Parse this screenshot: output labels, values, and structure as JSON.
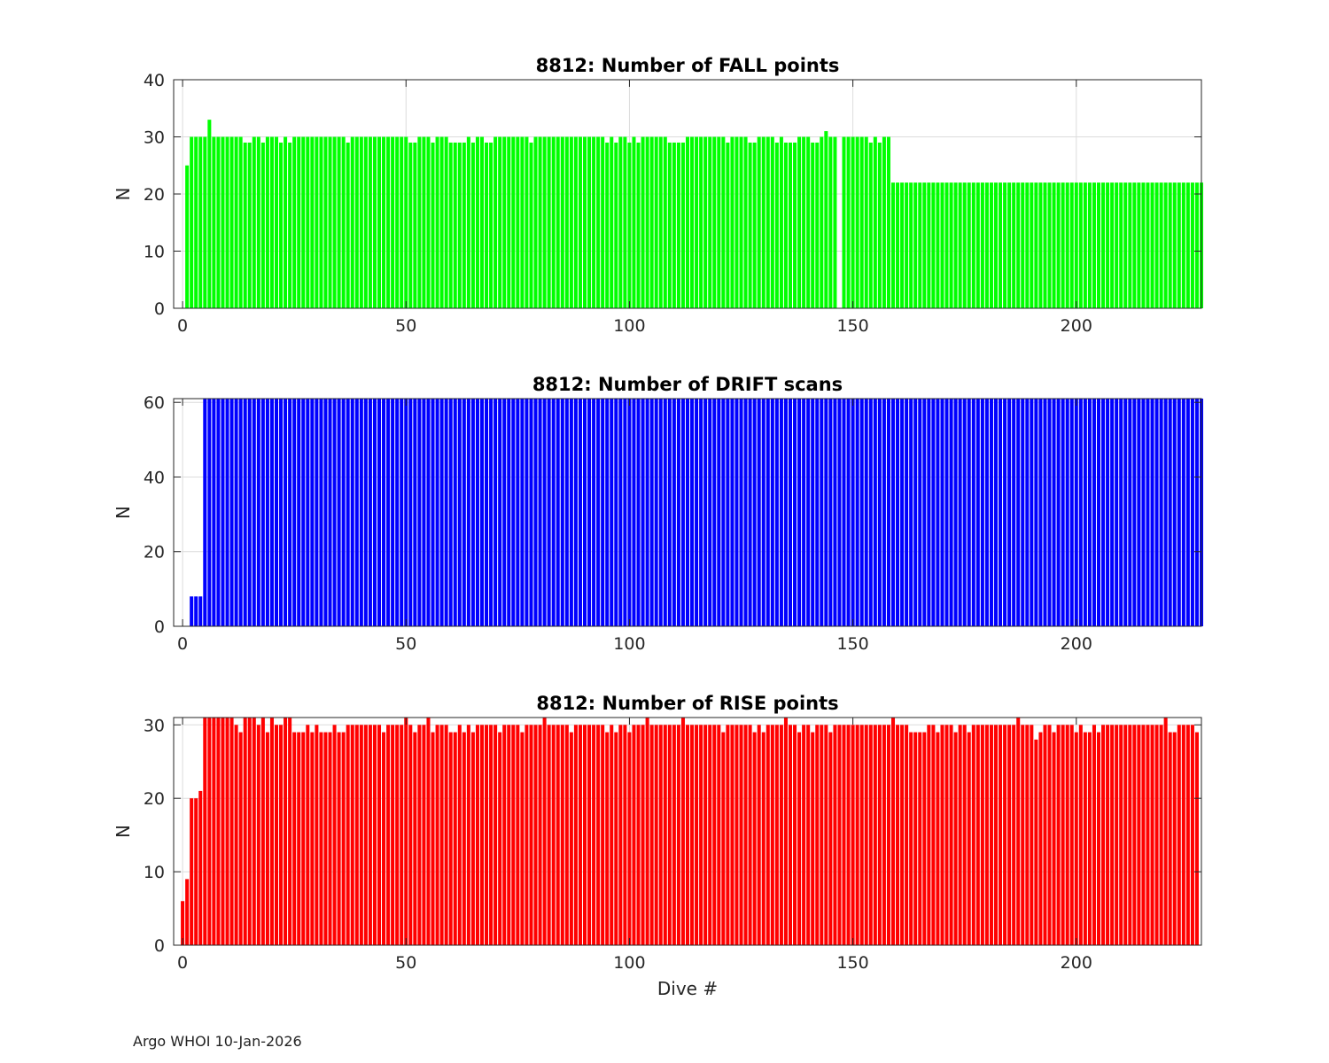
{
  "chart_data": [
    {
      "type": "bar",
      "title": "8812: Number of FALL points",
      "ylabel": "N",
      "xlabel": "",
      "xlim": [
        -2,
        228
      ],
      "ylim": [
        0,
        40
      ],
      "xticks": [
        0,
        50,
        100,
        150,
        200
      ],
      "yticks": [
        0,
        10,
        20,
        30,
        40
      ],
      "grid": true,
      "color": "#00ff00",
      "series": [
        {
          "start_x": 0,
          "values": [
            null,
            25,
            30,
            30,
            30,
            30,
            33,
            30,
            30,
            30,
            30,
            30,
            30,
            30,
            29,
            29,
            30,
            30,
            29,
            30,
            30,
            30,
            29,
            30,
            29,
            30,
            30,
            30,
            30,
            30,
            30,
            30,
            30,
            30,
            30,
            30,
            30,
            29,
            30,
            30,
            30,
            30,
            30,
            30,
            30,
            30,
            30,
            30,
            30,
            30,
            30,
            29,
            29,
            30,
            30,
            30,
            29,
            30,
            30,
            30,
            29,
            29,
            29,
            29,
            30,
            29,
            30,
            30,
            29,
            29,
            30,
            30,
            30,
            30,
            30,
            30,
            30,
            30,
            29,
            30,
            30,
            30,
            30,
            30,
            30,
            30,
            30,
            30,
            30,
            30,
            30,
            30,
            30,
            30,
            30,
            29,
            30,
            29,
            30,
            30,
            29,
            30,
            29,
            30,
            30,
            30,
            30,
            30,
            30,
            29,
            29,
            29,
            29,
            30,
            30,
            30,
            30,
            30,
            30,
            30,
            30,
            30,
            29,
            30,
            30,
            30,
            30,
            29,
            29,
            30,
            30,
            30,
            30,
            29,
            30,
            29,
            29,
            29,
            30,
            30,
            30,
            29,
            29,
            30,
            31,
            30,
            30,
            null,
            30,
            30,
            30,
            30,
            30,
            30,
            29,
            30,
            29,
            30,
            30,
            22,
            22,
            22,
            22,
            22,
            22,
            22,
            22,
            22,
            22,
            22,
            22,
            22,
            22,
            22,
            22,
            22,
            22,
            22,
            22,
            22,
            22,
            22,
            22,
            22,
            22,
            22,
            22,
            22,
            22,
            22,
            22,
            22,
            22,
            22,
            22,
            22,
            22,
            22,
            22,
            22,
            22,
            22,
            22,
            22,
            22,
            22,
            22,
            22,
            22,
            22,
            22,
            22,
            22,
            22,
            22,
            22,
            22,
            22,
            22,
            22,
            22,
            22,
            22,
            22,
            22,
            22,
            22,
            22,
            22
          ]
        }
      ]
    },
    {
      "type": "bar",
      "title": "8812: Number of DRIFT scans",
      "ylabel": "N",
      "xlabel": "",
      "xlim": [
        -2,
        228
      ],
      "ylim": [
        0,
        61
      ],
      "xticks": [
        0,
        50,
        100,
        150,
        200
      ],
      "yticks": [
        0,
        20,
        40,
        60
      ],
      "grid": true,
      "color": "#0000ff",
      "series": [
        {
          "start_x": 0,
          "values": [
            null,
            null,
            8,
            8,
            8,
            61,
            61,
            61,
            61,
            61,
            61,
            61,
            61,
            61,
            61,
            61,
            61,
            61,
            61,
            61,
            61,
            61,
            61,
            61,
            61,
            61,
            61,
            61,
            61,
            61,
            61,
            61,
            61,
            61,
            61,
            61,
            61,
            61,
            61,
            61,
            61,
            61,
            61,
            61,
            61,
            61,
            61,
            61,
            61,
            61,
            61,
            61,
            61,
            61,
            61,
            61,
            61,
            61,
            61,
            61,
            61,
            61,
            61,
            61,
            61,
            61,
            61,
            61,
            61,
            61,
            61,
            61,
            61,
            61,
            61,
            61,
            61,
            61,
            61,
            61,
            61,
            61,
            61,
            61,
            61,
            61,
            61,
            61,
            61,
            61,
            61,
            61,
            61,
            61,
            61,
            61,
            61,
            61,
            61,
            61,
            61,
            61,
            61,
            61,
            61,
            61,
            61,
            61,
            61,
            61,
            61,
            61,
            61,
            61,
            61,
            61,
            61,
            61,
            61,
            61,
            61,
            61,
            61,
            61,
            61,
            61,
            61,
            61,
            61,
            61,
            61,
            61,
            61,
            61,
            61,
            61,
            61,
            61,
            61,
            61,
            61,
            61,
            61,
            61,
            61,
            61,
            61,
            61,
            61,
            61,
            61,
            61,
            61,
            61,
            61,
            61,
            61,
            61,
            61,
            61,
            61,
            61,
            61,
            61,
            61,
            61,
            61,
            61,
            61,
            61,
            61,
            61,
            61,
            61,
            61,
            61,
            61,
            61,
            61,
            61,
            61,
            61,
            61,
            61,
            61,
            61,
            61,
            61,
            61,
            61,
            61,
            61,
            61,
            61,
            61,
            61,
            61,
            61,
            61,
            61,
            61,
            61,
            61,
            61,
            61,
            61,
            61,
            61,
            61,
            61,
            61,
            61,
            61,
            61,
            61,
            61,
            61,
            61,
            61,
            61,
            61,
            61,
            61,
            61,
            61,
            61,
            61,
            61,
            61
          ]
        }
      ]
    },
    {
      "type": "bar",
      "title": "8812: Number of RISE points",
      "ylabel": "N",
      "xlabel": "Dive #",
      "xlim": [
        -2,
        228
      ],
      "ylim": [
        0,
        31
      ],
      "xticks": [
        0,
        50,
        100,
        150,
        200
      ],
      "yticks": [
        0,
        10,
        20,
        30
      ],
      "grid": true,
      "color": "#ff0000",
      "series": [
        {
          "start_x": 0,
          "values": [
            6,
            9,
            20,
            20,
            21,
            31,
            31,
            31,
            31,
            31,
            31,
            31,
            30,
            29,
            31,
            31,
            31,
            30,
            31,
            29,
            31,
            30,
            30,
            31,
            31,
            29,
            29,
            29,
            30,
            29,
            30,
            29,
            29,
            29,
            30,
            29,
            29,
            30,
            30,
            30,
            30,
            30,
            30,
            30,
            30,
            29,
            30,
            30,
            30,
            30,
            31,
            30,
            29,
            30,
            30,
            31,
            29,
            30,
            30,
            30,
            29,
            29,
            30,
            29,
            30,
            29,
            30,
            30,
            30,
            30,
            30,
            29,
            30,
            30,
            30,
            30,
            29,
            30,
            30,
            30,
            30,
            31,
            30,
            30,
            30,
            30,
            30,
            29,
            30,
            30,
            30,
            30,
            30,
            30,
            30,
            29,
            30,
            29,
            30,
            30,
            29,
            30,
            30,
            30,
            31,
            30,
            30,
            30,
            30,
            30,
            30,
            30,
            31,
            30,
            30,
            30,
            30,
            30,
            30,
            30,
            30,
            29,
            30,
            30,
            30,
            30,
            30,
            30,
            29,
            30,
            29,
            30,
            30,
            30,
            30,
            31,
            30,
            30,
            29,
            30,
            30,
            29,
            30,
            30,
            30,
            29,
            30,
            30,
            30,
            30,
            30,
            30,
            30,
            30,
            30,
            30,
            30,
            30,
            30,
            31,
            30,
            30,
            30,
            29,
            29,
            29,
            29,
            30,
            30,
            29,
            30,
            30,
            30,
            29,
            30,
            30,
            29,
            30,
            30,
            30,
            30,
            30,
            30,
            30,
            30,
            30,
            30,
            31,
            30,
            30,
            30,
            28,
            29,
            30,
            30,
            29,
            30,
            30,
            30,
            30,
            29,
            30,
            29,
            29,
            30,
            29,
            30,
            30,
            30,
            30,
            30,
            30,
            30,
            30,
            30,
            30,
            30,
            30,
            30,
            30,
            31,
            29,
            29,
            30,
            30,
            30,
            30,
            29
          ]
        }
      ]
    }
  ],
  "footer": "Argo WHOI 10-Jan-2026"
}
